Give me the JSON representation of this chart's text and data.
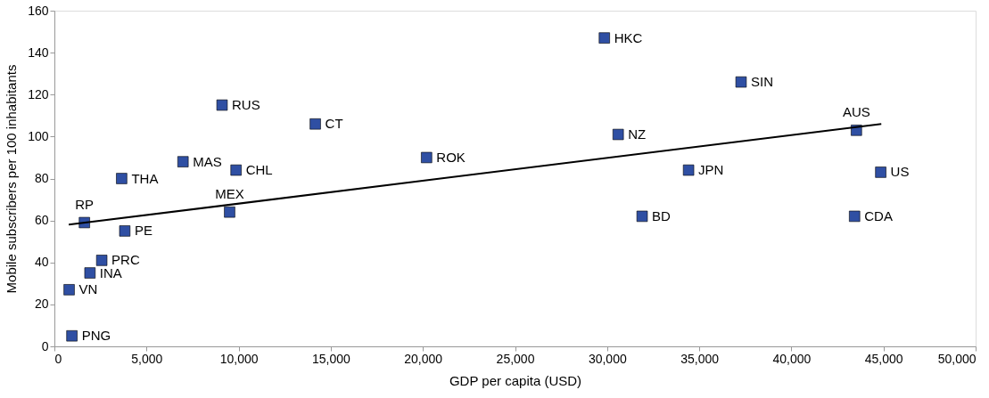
{
  "chart_data": {
    "type": "scatter",
    "xlabel": "GDP per capita (USD)",
    "ylabel": "Mobile subscribers per 100 inhabitants",
    "xlim": [
      0,
      50000
    ],
    "xticks": [
      {
        "value": 0,
        "label": "0"
      },
      {
        "value": 5000,
        "label": "5,000"
      },
      {
        "value": 10000,
        "label": "10,000"
      },
      {
        "value": 15000,
        "label": "15,000"
      },
      {
        "value": 20000,
        "label": "20,000"
      },
      {
        "value": 25000,
        "label": "25,000"
      },
      {
        "value": 30000,
        "label": "30,000"
      },
      {
        "value": 35000,
        "label": "35,000"
      },
      {
        "value": 40000,
        "label": "40,000"
      },
      {
        "value": 45000,
        "label": "45,000"
      },
      {
        "value": 50000,
        "label": "50,000"
      }
    ],
    "ylim": [
      0,
      160
    ],
    "yticks": [
      0,
      20,
      40,
      60,
      80,
      100,
      120,
      140,
      160
    ],
    "grid": false,
    "marker": "square",
    "series": [
      {
        "color": "#2f4fa3",
        "x": [
          950,
          800,
          1930,
          2570,
          1630,
          3820,
          3650,
          6980,
          9100,
          9860,
          9510,
          14160,
          20200,
          29850,
          30600,
          31900,
          37270,
          34420,
          43530,
          44850,
          43430
        ],
        "values": [
          5,
          27,
          35,
          41,
          59,
          55,
          80,
          88,
          115,
          84,
          64,
          106,
          90,
          147,
          101,
          62,
          126,
          84,
          103,
          83,
          62
        ]
      },
      {
        "type": "line",
        "marker": "none",
        "line_style": "solid",
        "color": "#000000",
        "x": [
          780,
          44880
        ],
        "values": [
          58,
          106
        ]
      }
    ],
    "annotations": [
      {
        "text": "PNG",
        "x": 950,
        "y": 5
      },
      {
        "text": "VN",
        "x": 800,
        "y": 27
      },
      {
        "text": "INA",
        "x": 1930,
        "y": 35
      },
      {
        "text": "PRC",
        "x": 2570,
        "y": 41
      },
      {
        "text": "RP",
        "x": 1630,
        "y": 59
      },
      {
        "text": "PE",
        "x": 3820,
        "y": 55
      },
      {
        "text": "THA",
        "x": 3650,
        "y": 80
      },
      {
        "text": "MAS",
        "x": 6980,
        "y": 88
      },
      {
        "text": "RUS",
        "x": 9100,
        "y": 115
      },
      {
        "text": "CHL",
        "x": 9860,
        "y": 84
      },
      {
        "text": "MEX",
        "x": 9510,
        "y": 64
      },
      {
        "text": "CT",
        "x": 14160,
        "y": 106
      },
      {
        "text": "ROK",
        "x": 20200,
        "y": 90
      },
      {
        "text": "HKC",
        "x": 29850,
        "y": 147
      },
      {
        "text": "NZ",
        "x": 30600,
        "y": 101
      },
      {
        "text": "BD",
        "x": 31900,
        "y": 62
      },
      {
        "text": "SIN",
        "x": 37270,
        "y": 126
      },
      {
        "text": "JPN",
        "x": 34420,
        "y": 84
      },
      {
        "text": "AUS",
        "x": 43530,
        "y": 103
      },
      {
        "text": "US",
        "x": 44850,
        "y": 83
      },
      {
        "text": "CDA",
        "x": 43430,
        "y": 62
      }
    ]
  }
}
